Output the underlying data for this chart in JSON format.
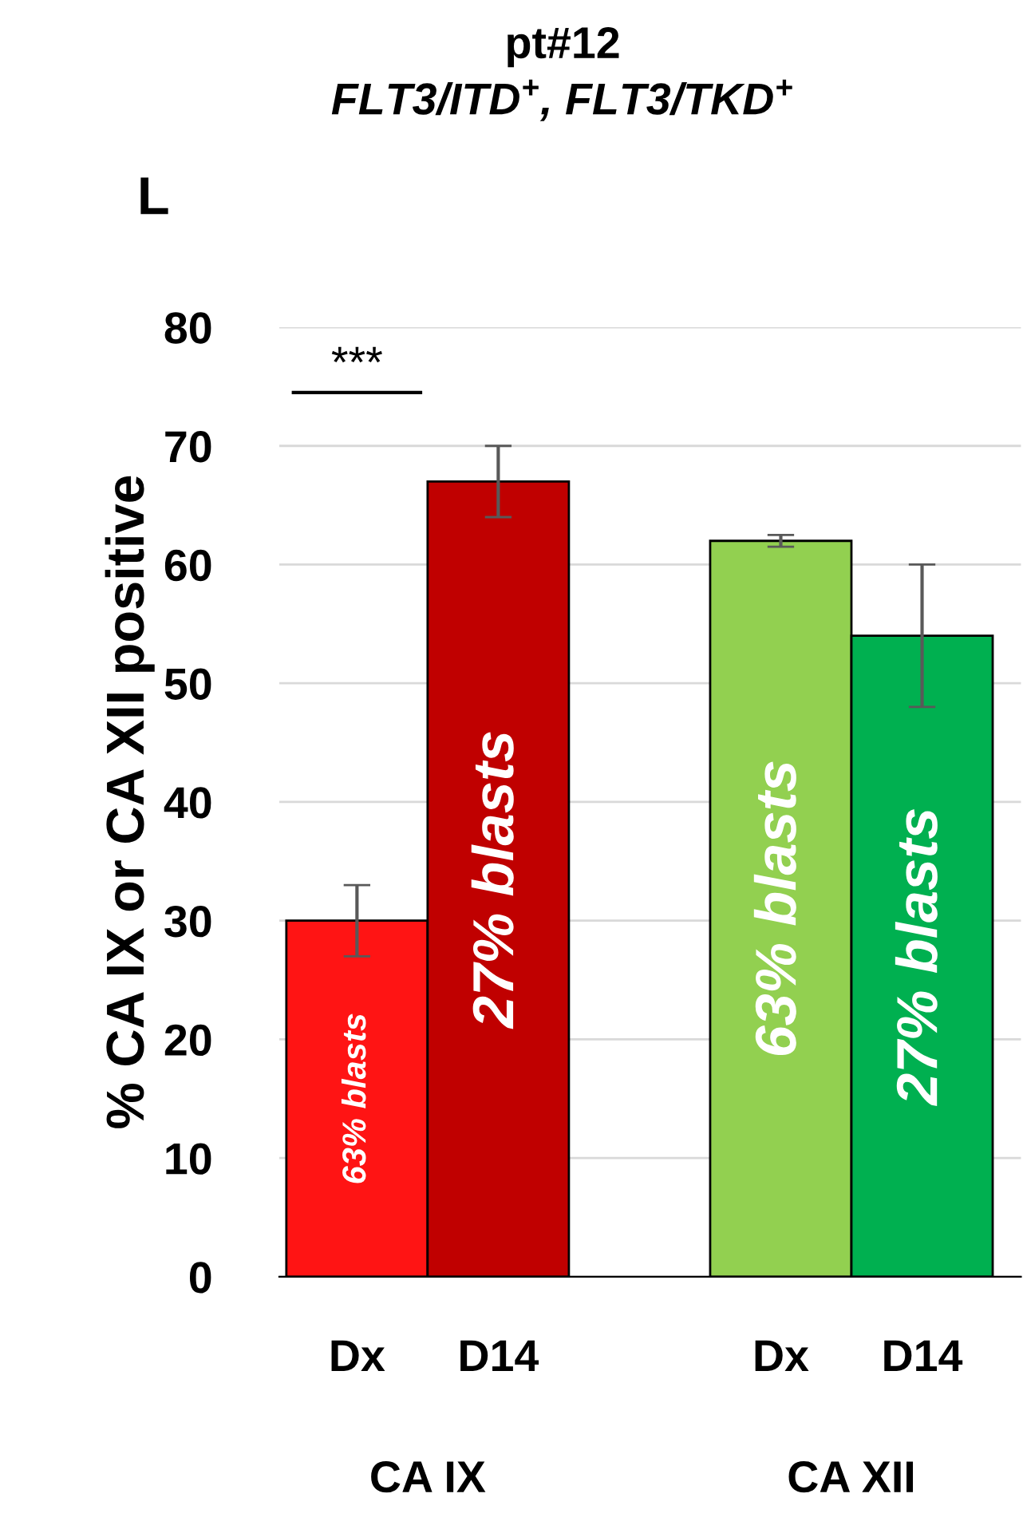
{
  "chart_data": {
    "type": "bar",
    "title": "pt#12",
    "subtitle": "FLT3/ITD$^{+}$, FLT3/TKD$^{+}$",
    "ylabel": "% CA IX or CA XII positive",
    "categories": [
      "Dx",
      "D14",
      null,
      "Dx",
      "D14"
    ],
    "values": [
      30,
      67,
      null,
      62,
      54
    ],
    "colors": [
      "#ff1414",
      "#c00000",
      null,
      "#92d050",
      "#00b050"
    ],
    "errors": [
      3,
      3,
      null,
      0.5,
      6
    ],
    "ylim": [
      0,
      80
    ],
    "yticks": [
      0,
      10,
      20,
      30,
      40,
      50,
      60,
      70,
      80
    ],
    "grid": "y",
    "annotations": [
      "63% blasts",
      "27% blasts",
      "63% blasts",
      "27% blasts",
      "***",
      "CA IX",
      "CA XII",
      "L"
    ]
  }
}
